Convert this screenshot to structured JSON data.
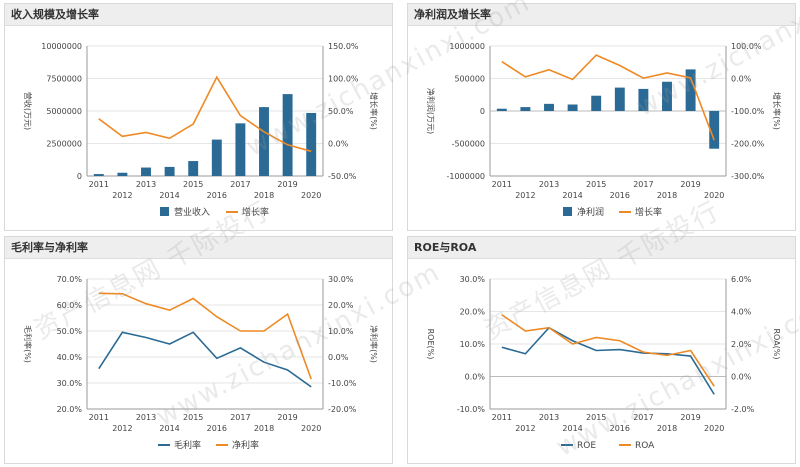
{
  "watermark": {
    "cn": "资产信息网 千际投行",
    "url": "www.zichanxinxi.com"
  },
  "colors": {
    "blue": "#2b6a94",
    "orange": "#ee8a25",
    "grid": "#e6e6e6",
    "axis": "#999999"
  },
  "chart_data": [
    {
      "type": "bar",
      "title": "收入规模及增长率",
      "ylabel": "营收(万元)",
      "y2label": "增长率(%)",
      "categories": [
        "2011",
        "2012",
        "2013",
        "2014",
        "2015",
        "2016",
        "2017",
        "2018",
        "2019",
        "2020"
      ],
      "ylim": [
        0,
        10000000
      ],
      "yticks": [
        0,
        2500000,
        5000000,
        7500000,
        10000000
      ],
      "yticklabels": [
        "0",
        "2500000",
        "5000000",
        "7500000",
        "10000000"
      ],
      "y2lim": [
        -50,
        150
      ],
      "y2ticks": [
        -50,
        0,
        50,
        100,
        150
      ],
      "y2ticklabels": [
        "-50.0%",
        "0.0%",
        "50.0%",
        "100.0%",
        "150.0%"
      ],
      "series": [
        {
          "name": "营业收入",
          "kind": "bar",
          "axis": "left",
          "values": [
            150000,
            250000,
            650000,
            700000,
            1150000,
            2800000,
            4050000,
            5300000,
            6300000,
            4850000
          ]
        },
        {
          "name": "增长率",
          "kind": "line",
          "axis": "right",
          "values": [
            38,
            11,
            17,
            8,
            30,
            102,
            43,
            18,
            -2,
            -12
          ]
        }
      ],
      "legend": "bottom-center"
    },
    {
      "type": "bar",
      "title": "净利润及增长率",
      "ylabel": "净利润(万元)",
      "y2label": "增长率(%)",
      "categories": [
        "2011",
        "2012",
        "2013",
        "2014",
        "2015",
        "2016",
        "2017",
        "2018",
        "2019",
        "2020"
      ],
      "ylim": [
        -1000000,
        1000000
      ],
      "yticks": [
        -1000000,
        -500000,
        0,
        500000,
        1000000
      ],
      "yticklabels": [
        "-1000000",
        "-500000",
        "0",
        "500000",
        "1000000"
      ],
      "y2lim": [
        -300,
        100
      ],
      "y2ticks": [
        -300,
        -200,
        -100,
        0,
        100
      ],
      "y2ticklabels": [
        "-300.0%",
        "-200.0%",
        "-100.0%",
        "0.0%",
        "100.0%"
      ],
      "series": [
        {
          "name": "净利润",
          "kind": "bar",
          "axis": "left",
          "values": [
            35000,
            60000,
            110000,
            100000,
            235000,
            360000,
            340000,
            450000,
            640000,
            -580000
          ]
        },
        {
          "name": "增长率",
          "kind": "line",
          "axis": "right",
          "values": [
            52,
            5,
            27,
            -3,
            72,
            40,
            1,
            17,
            2,
            -190
          ]
        }
      ],
      "legend": "bottom-center"
    },
    {
      "type": "line",
      "title": "毛利率与净利率",
      "ylabel": "毛利率(%)",
      "y2label": "净利率(%)",
      "categories": [
        "2011",
        "2012",
        "2013",
        "2014",
        "2015",
        "2016",
        "2017",
        "2018",
        "2019",
        "2020"
      ],
      "ylim": [
        20,
        70
      ],
      "yticks": [
        20,
        30,
        40,
        50,
        60,
        70
      ],
      "yticklabels": [
        "20.0%",
        "30.0%",
        "40.0%",
        "50.0%",
        "60.0%",
        "70.0%"
      ],
      "y2lim": [
        -20,
        30
      ],
      "y2ticks": [
        -20,
        -10,
        0,
        10,
        20,
        30
      ],
      "y2ticklabels": [
        "-20.0%",
        "-10.0%",
        "0.0%",
        "10.0%",
        "20.0%",
        "30.0%"
      ],
      "series": [
        {
          "name": "毛利率",
          "kind": "line",
          "axis": "left",
          "values": [
            35.5,
            49.5,
            47.5,
            45,
            49.5,
            39.5,
            43.5,
            38,
            35,
            28.5
          ]
        },
        {
          "name": "净利率",
          "kind": "line",
          "axis": "right",
          "values": [
            24.5,
            24.3,
            20.5,
            18,
            22.5,
            15.5,
            10,
            10,
            16.5,
            -8.5
          ]
        }
      ],
      "legend": "bottom-center"
    },
    {
      "type": "line",
      "title": "ROE与ROA",
      "ylabel": "ROE(%)",
      "y2label": "ROA(%)",
      "categories": [
        "2011",
        "2012",
        "2013",
        "2014",
        "2015",
        "2016",
        "2017",
        "2018",
        "2019",
        "2020"
      ],
      "ylim": [
        -10,
        30
      ],
      "yticks": [
        -10,
        0,
        10,
        20,
        30
      ],
      "yticklabels": [
        "-10.0%",
        "0.0%",
        "10.0%",
        "20.0%",
        "30.0%"
      ],
      "y2lim": [
        -2,
        6
      ],
      "y2ticks": [
        -2,
        0,
        2,
        4,
        6
      ],
      "y2ticklabels": [
        "-2.0%",
        "0.0%",
        "2.0%",
        "4.0%",
        "6.0%"
      ],
      "series": [
        {
          "name": "ROE",
          "kind": "line",
          "axis": "left",
          "values": [
            9,
            7,
            15,
            11,
            8,
            8.3,
            7.2,
            7,
            6.3,
            -5.5
          ]
        },
        {
          "name": "ROA",
          "kind": "line",
          "axis": "right",
          "values": [
            3.8,
            2.8,
            3,
            2,
            2.4,
            2.2,
            1.5,
            1.3,
            1.6,
            -0.6
          ]
        }
      ],
      "legend": "bottom-center"
    }
  ]
}
